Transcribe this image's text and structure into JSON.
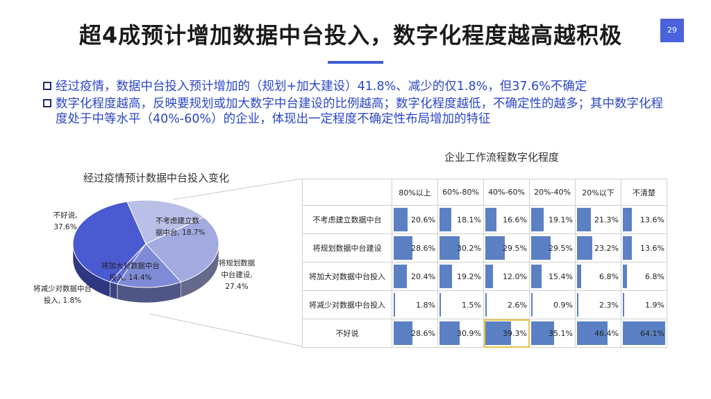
{
  "header": {
    "title": "超4成预计增加数据中台投入，数字化程度越高越积极",
    "page_number": "29"
  },
  "bullets": [
    "经过疫情，数据中台投入预计增加的（规划+加大建设）41.8%、减少的仅1.8%，但37.6%不确定",
    "数字化程度越高，反映要规划或加大数字中台建设的比例越高；数字化程度越低，不确定性的越多；其中数字化程度处于中等水平（40%-60%）的企业，体现出一定程度不确定性布局增加的特征"
  ],
  "colors": {
    "accent": "#3b5bd6",
    "bar": "#5b80c4",
    "highlight": "#e8c547"
  },
  "chart_data": [
    {
      "type": "pie",
      "title": "经过疫情预计数据中台投入变化",
      "slices": [
        {
          "label": "不考虑建立数据中台",
          "value": 18.7,
          "label_lines": [
            "不考虑建立数",
            "据中台, 18.7%"
          ],
          "color": "#b9bfe6"
        },
        {
          "label": "将规划数据中台建设",
          "value": 27.4,
          "label_lines": [
            "将规划数据",
            "中台建设,",
            "27.4%"
          ],
          "color": "#a3aadf"
        },
        {
          "label": "将加大对数据中台投入",
          "value": 14.4,
          "label_lines": [
            "将加大对数据中台",
            "投入, 14.4%"
          ],
          "color": "#7f8bd6"
        },
        {
          "label": "将减少对数据中台投入",
          "value": 1.8,
          "label_lines": [
            "将减少对数据中台",
            "投入, 1.8%"
          ],
          "color": "#5f6ccf"
        },
        {
          "label": "不好说",
          "value": 37.6,
          "label_lines": [
            "不好说,",
            "37.6%"
          ],
          "color": "#4a5ad0"
        }
      ]
    },
    {
      "type": "table",
      "title": "企业工作流程数字化程度",
      "columns": [
        "80%以上",
        "60%-80%",
        "40%-60%",
        "20%-40%",
        "20%以下",
        "不清楚"
      ],
      "rows": [
        {
          "label": "不考虑建立数据中台",
          "values": [
            20.6,
            18.1,
            16.6,
            19.1,
            21.3,
            13.6
          ],
          "display": [
            "20.6%",
            "18.1%",
            "16.6%",
            "19.1%",
            "21.3%",
            "13.6%"
          ]
        },
        {
          "label": "将规划数据中台建设",
          "values": [
            28.6,
            30.2,
            29.5,
            29.5,
            23.2,
            13.6
          ],
          "display": [
            "28.6%",
            "30.2%",
            "29.5%",
            "29.5%",
            "23.2%",
            "13.6%"
          ]
        },
        {
          "label": "将加大对数据中台投入",
          "values": [
            20.4,
            19.2,
            12.0,
            15.4,
            6.8,
            6.8
          ],
          "display": [
            "20.4%",
            "19.2%",
            "12.0%",
            "15.4%",
            "6.8%",
            "6.8%"
          ]
        },
        {
          "label": "将减少对数据中台投入",
          "values": [
            1.8,
            1.5,
            2.6,
            0.9,
            2.3,
            1.9
          ],
          "display": [
            "1.8%",
            "1.5%",
            "2.6%",
            "0.9%",
            "2.3%",
            "1.9%"
          ]
        },
        {
          "label": "不好说",
          "values": [
            28.6,
            30.9,
            39.3,
            35.1,
            46.4,
            64.1
          ],
          "display": [
            "28.6%",
            "30.9%",
            "39.3%",
            "35.1%",
            "46.4%",
            "64.1%"
          ]
        }
      ],
      "highlighted_cell": {
        "row": 4,
        "col": 2
      },
      "bar_max": 64.1
    }
  ]
}
